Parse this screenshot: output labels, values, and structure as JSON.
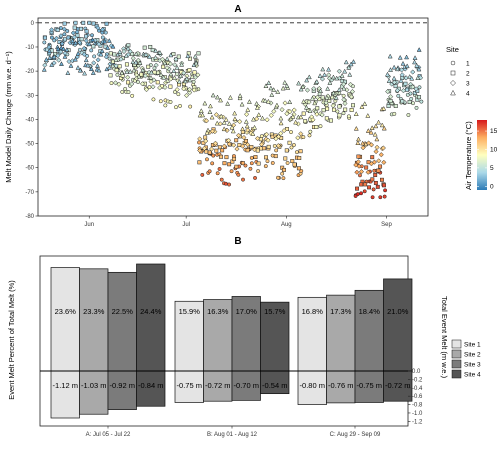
{
  "chart_data": [
    {
      "panel": "A",
      "type": "scatter",
      "ylabel": "Melt Model Daily Change (mm w.e. d⁻¹)",
      "xticks": [
        "Jun",
        "Jul",
        "Aug",
        "Sep"
      ],
      "yticks": [
        "0",
        "-10",
        "-20",
        "-30",
        "-40",
        "-50",
        "-60",
        "-70",
        "-80"
      ],
      "ylim": [
        -80,
        2
      ],
      "xlim_days": [
        0,
        117
      ],
      "reference_line_y": 0,
      "legend_shape": {
        "title": "Site",
        "entries": [
          "1",
          "2",
          "3",
          "4"
        ],
        "shapes": [
          "circle",
          "square",
          "diamond",
          "triangle"
        ]
      },
      "legend_color": {
        "title": "Air Temperature (°C)",
        "ticks": [
          "0",
          "5",
          "10",
          "15"
        ],
        "range": [
          -1,
          18
        ],
        "colors": [
          "#2c7bb6",
          "#abd9e9",
          "#ffffbf",
          "#fdae61",
          "#d7191c"
        ]
      },
      "segments": [
        {
          "start": 0,
          "end": 20,
          "site": 0,
          "base": -8,
          "slope": 0,
          "noise": 6,
          "temp": 3
        },
        {
          "start": 0,
          "end": 20,
          "site": 1,
          "base": -6,
          "slope": 0,
          "noise": 7,
          "temp": 4
        },
        {
          "start": 0,
          "end": 22,
          "site": 2,
          "base": -10,
          "slope": 0,
          "noise": 8,
          "temp": 3
        },
        {
          "start": 0,
          "end": 22,
          "site": 3,
          "base": -14,
          "slope": 0,
          "noise": 7,
          "temp": 2
        },
        {
          "start": 20,
          "end": 48,
          "site": 0,
          "base": -22,
          "slope": -0.25,
          "noise": 8,
          "temp": 7
        },
        {
          "start": 20,
          "end": 48,
          "site": 1,
          "base": -16,
          "slope": -0.15,
          "noise": 8,
          "temp": 7
        },
        {
          "start": 22,
          "end": 48,
          "site": 2,
          "base": -18,
          "slope": -0.2,
          "noise": 8,
          "temp": 6
        },
        {
          "start": 22,
          "end": 48,
          "site": 3,
          "base": -15,
          "slope": -0.2,
          "noise": 6,
          "temp": 5
        },
        {
          "start": 48,
          "end": 66,
          "site": 0,
          "base": -58,
          "slope": 0,
          "noise": 9,
          "temp": 14
        },
        {
          "start": 48,
          "end": 66,
          "site": 1,
          "base": -52,
          "slope": 0,
          "noise": 8,
          "temp": 12
        },
        {
          "start": 48,
          "end": 66,
          "site": 2,
          "base": -45,
          "slope": 0,
          "noise": 8,
          "temp": 10
        },
        {
          "start": 48,
          "end": 66,
          "site": 3,
          "base": -38,
          "slope": 0,
          "noise": 8,
          "temp": 8
        },
        {
          "start": 66,
          "end": 80,
          "site": 0,
          "base": -55,
          "slope": 0,
          "noise": 10,
          "temp": 11
        },
        {
          "start": 66,
          "end": 80,
          "site": 1,
          "base": -52,
          "slope": 0,
          "noise": 9,
          "temp": 11
        },
        {
          "start": 66,
          "end": 80,
          "site": 2,
          "base": -42,
          "slope": 0,
          "noise": 9,
          "temp": 9
        },
        {
          "start": 66,
          "end": 80,
          "site": 3,
          "base": -33,
          "slope": 0,
          "noise": 9,
          "temp": 7
        },
        {
          "start": 80,
          "end": 96,
          "site": 0,
          "base": -40,
          "slope": 0.6,
          "noise": 8,
          "temp": 8
        },
        {
          "start": 80,
          "end": 96,
          "site": 1,
          "base": -38,
          "slope": 0.6,
          "noise": 8,
          "temp": 8
        },
        {
          "start": 80,
          "end": 96,
          "site": 2,
          "base": -34,
          "slope": 0.6,
          "noise": 8,
          "temp": 7
        },
        {
          "start": 80,
          "end": 96,
          "site": 3,
          "base": -30,
          "slope": 0.6,
          "noise": 8,
          "temp": 6
        },
        {
          "start": 96,
          "end": 106,
          "site": 0,
          "base": -66,
          "slope": 0,
          "noise": 7,
          "temp": 16
        },
        {
          "start": 96,
          "end": 106,
          "site": 1,
          "base": -62,
          "slope": 0,
          "noise": 7,
          "temp": 15
        },
        {
          "start": 96,
          "end": 106,
          "site": 2,
          "base": -55,
          "slope": 0,
          "noise": 7,
          "temp": 12
        },
        {
          "start": 96,
          "end": 106,
          "site": 3,
          "base": -42,
          "slope": 0,
          "noise": 9,
          "temp": 10
        },
        {
          "start": 106,
          "end": 117,
          "site": 0,
          "base": -34,
          "slope": 0.4,
          "noise": 7,
          "temp": 6
        },
        {
          "start": 106,
          "end": 117,
          "site": 1,
          "base": -30,
          "slope": 0.4,
          "noise": 6,
          "temp": 5
        },
        {
          "start": 106,
          "end": 117,
          "site": 2,
          "base": -26,
          "slope": 0.4,
          "noise": 6,
          "temp": 5
        },
        {
          "start": 106,
          "end": 117,
          "site": 3,
          "base": -20,
          "slope": 0.3,
          "noise": 6,
          "temp": 4
        }
      ]
    },
    {
      "panel": "B",
      "type": "bar",
      "ylabel_left": "Event Melt Percent of Total Melt (%)",
      "ylabel_right": "Total Event Melt (m w.e.)",
      "right_ticks": [
        "0.0",
        "-0.2",
        "-0.4",
        "-0.6",
        "-0.8",
        "-1.0",
        "-1.2"
      ],
      "right_range": [
        0,
        -1.2
      ],
      "percent_range": [
        0,
        26
      ],
      "categories": [
        "A: Jul 05 - Jul 22",
        "B: Aug 01 - Aug 12",
        "C: Aug 29 - Sep 09"
      ],
      "legend": [
        "Site 1",
        "Site 2",
        "Site 3",
        "Site 4"
      ],
      "colors": [
        "#e4e4e4",
        "#a9a9a9",
        "#7b7b7b",
        "#555555"
      ],
      "series": [
        {
          "name": "Site 1",
          "percent": [
            23.6,
            15.9,
            16.8
          ],
          "percent_labels": [
            "23.6%",
            "15.9%",
            "16.8%"
          ],
          "melt": [
            -1.12,
            -0.75,
            -0.8
          ],
          "melt_labels": [
            "-1.12 m",
            "-0.75 m",
            "-0.80 m"
          ]
        },
        {
          "name": "Site 2",
          "percent": [
            23.3,
            16.3,
            17.3
          ],
          "percent_labels": [
            "23.3%",
            "16.3%",
            "17.3%"
          ],
          "melt": [
            -1.03,
            -0.72,
            -0.76
          ],
          "melt_labels": [
            "-1.03 m",
            "-0.72 m",
            "-0.76 m"
          ]
        },
        {
          "name": "Site 3",
          "percent": [
            22.5,
            17.0,
            18.4
          ],
          "percent_labels": [
            "22.5%",
            "17.0%",
            "18.4%"
          ],
          "melt": [
            -0.92,
            -0.7,
            -0.75
          ],
          "melt_labels": [
            "-0.92 m",
            "-0.70 m",
            "-0.75 m"
          ]
        },
        {
          "name": "Site 4",
          "percent": [
            24.4,
            15.7,
            21.0
          ],
          "percent_labels": [
            "24.4%",
            "15.7%",
            "21.0%"
          ],
          "melt": [
            -0.84,
            -0.54,
            -0.72
          ],
          "melt_labels": [
            "-0.84 m",
            "-0.54 m",
            "-0.72 m"
          ]
        }
      ]
    }
  ]
}
